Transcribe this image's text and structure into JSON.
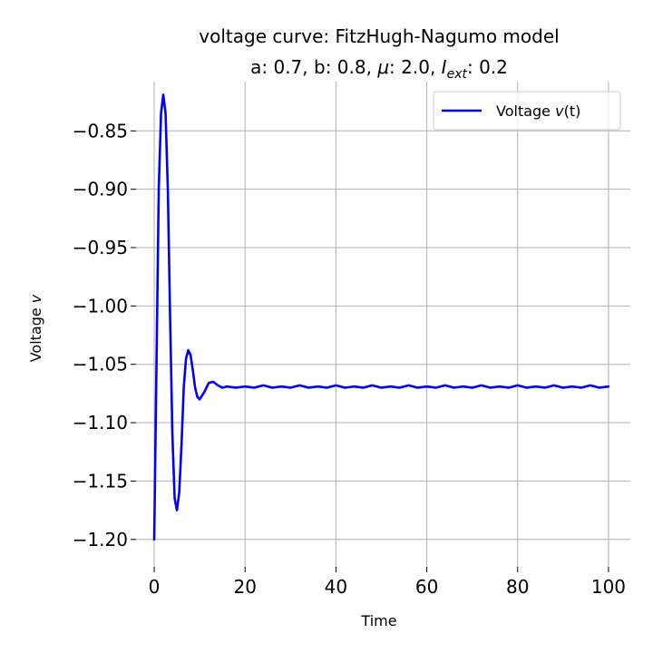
{
  "chart_data": {
    "type": "line",
    "title_line1": "voltage curve: FitzHugh-Nagumo model",
    "title_line2": {
      "pre_a": "a: 0.7, b: 0.8, ",
      "mu_symbol": "μ",
      "mid": ": 2.0, ",
      "I_symbol": "I",
      "ext_subscript": "ext",
      "post": ": 0.2"
    },
    "xlabel": "Time",
    "ylabel": {
      "text": "Voltage ",
      "var": "v"
    },
    "xlim": [
      -4,
      104.8
    ],
    "ylim": [
      -1.2235,
      -0.8078
    ],
    "xticks": [
      0,
      20,
      40,
      60,
      80,
      100
    ],
    "xtick_labels": [
      "0",
      "20",
      "40",
      "60",
      "80",
      "100"
    ],
    "yticks": [
      -1.2,
      -1.15,
      -1.1,
      -1.05,
      -1.0,
      -0.95,
      -0.9,
      -0.85
    ],
    "ytick_labels": [
      "−1.20",
      "−1.15",
      "−1.10",
      "−1.05",
      "−1.00",
      "−0.95",
      "−0.90",
      "−0.85"
    ],
    "grid": true,
    "legend": {
      "placement": "top-right",
      "text": "Voltage ",
      "var": "v",
      "arg": "(t)"
    },
    "series": [
      {
        "name": "Voltage v(t)",
        "color": "#0000ff",
        "x": [
          0,
          0.5,
          1.0,
          1.5,
          2.0,
          2.5,
          3.0,
          3.5,
          4.0,
          4.5,
          5.0,
          5.5,
          6.0,
          6.5,
          7.0,
          7.5,
          8.0,
          8.5,
          9.0,
          9.5,
          10.0,
          11.0,
          12.0,
          13.0,
          14.0,
          15.0,
          16.0,
          18.0,
          20.0,
          22.0,
          24.0,
          26.0,
          28.0,
          30.0,
          32.0,
          34.0,
          36.0,
          38.0,
          40.0,
          42.0,
          44.0,
          46.0,
          48.0,
          50.0,
          52.0,
          54.0,
          56.0,
          58.0,
          60.0,
          62.0,
          64.0,
          66.0,
          68.0,
          70.0,
          72.0,
          74.0,
          76.0,
          78.0,
          80.0,
          82.0,
          84.0,
          86.0,
          88.0,
          90.0,
          92.0,
          94.0,
          96.0,
          98.0,
          100.0
        ],
        "y": [
          -1.2,
          -1.05,
          -0.9,
          -0.835,
          -0.819,
          -0.835,
          -0.9,
          -1.01,
          -1.11,
          -1.165,
          -1.175,
          -1.16,
          -1.12,
          -1.07,
          -1.045,
          -1.038,
          -1.042,
          -1.055,
          -1.07,
          -1.078,
          -1.08,
          -1.074,
          -1.066,
          -1.065,
          -1.068,
          -1.07,
          -1.069,
          -1.07,
          -1.069,
          -1.07,
          -1.068,
          -1.07,
          -1.069,
          -1.07,
          -1.068,
          -1.07,
          -1.069,
          -1.07,
          -1.068,
          -1.07,
          -1.069,
          -1.07,
          -1.068,
          -1.07,
          -1.069,
          -1.07,
          -1.068,
          -1.07,
          -1.069,
          -1.07,
          -1.068,
          -1.07,
          -1.069,
          -1.07,
          -1.068,
          -1.07,
          -1.069,
          -1.07,
          -1.068,
          -1.07,
          -1.069,
          -1.07,
          -1.068,
          -1.07,
          -1.069,
          -1.07,
          -1.068,
          -1.07,
          -1.069
        ]
      }
    ]
  }
}
